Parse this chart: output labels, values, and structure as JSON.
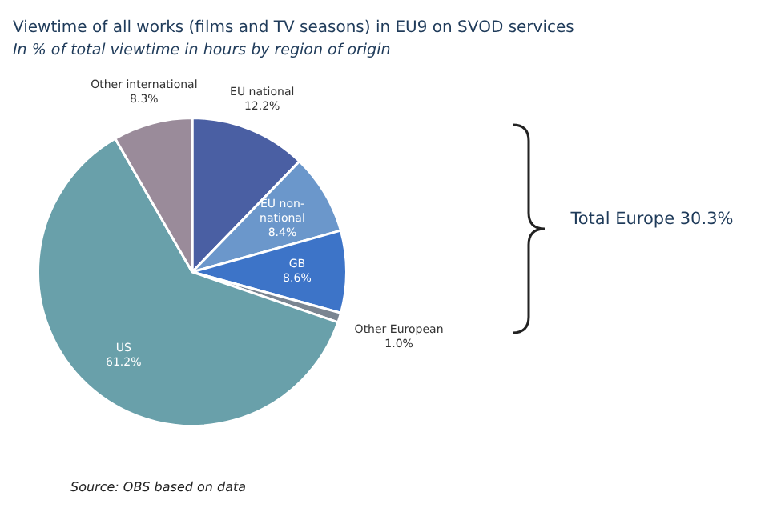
{
  "chart_data": {
    "type": "pie",
    "title": "Viewtime of all works (films and TV seasons) in EU9 on SVOD services",
    "subtitle": "In % of total viewtime in hours by region of origin",
    "categories": [
      "EU national",
      "EU non-national",
      "GB",
      "Other European",
      "US",
      "Other international"
    ],
    "values": [
      12.2,
      8.4,
      8.6,
      1.0,
      61.2,
      8.3
    ],
    "value_labels": [
      "12.2%",
      "8.4%",
      "8.6%",
      "1.0%",
      "61.2%",
      "8.3%"
    ],
    "colors": [
      "#4a5fa3",
      "#6b97cb",
      "#3d74c8",
      "#7a8591",
      "#69a0aa",
      "#9a8b9a"
    ],
    "annotations": [
      "Total Europe 30.3%",
      "Source: OBS based on data"
    ]
  }
}
